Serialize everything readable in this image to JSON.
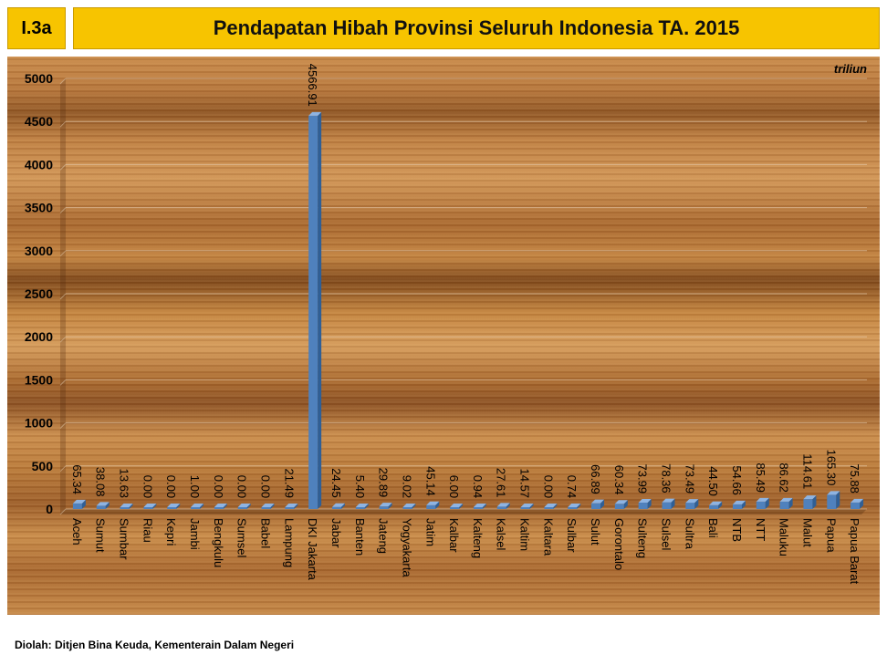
{
  "header": {
    "code": "I.3a",
    "title": "Pendapatan Hibah Provinsi Seluruh Indonesia TA. 2015"
  },
  "footer": {
    "source": "Diolah: Ditjen Bina Keuda, Kementerain Dalam Negeri"
  },
  "colors": {
    "header_bg": "#f7c400",
    "bar": "#4f81bd",
    "bar_dark": "#2f5f96"
  },
  "chart_data": {
    "type": "bar",
    "title": "Pendapatan Hibah Provinsi Seluruh Indonesia TA. 2015",
    "unit": "triliun",
    "xlabel": "",
    "ylabel": "",
    "ylim": [
      0,
      5000
    ],
    "yticks": [
      0,
      500,
      1000,
      1500,
      2000,
      2500,
      3000,
      3500,
      4000,
      4500,
      5000
    ],
    "grid": true,
    "categories": [
      "Aceh",
      "Sumut",
      "Sumbar",
      "Riau",
      "Kepri",
      "Jambi",
      "Bengkulu",
      "Sumsel",
      "Babel",
      "Lampung",
      "DKI Jakarta",
      "Jabar",
      "Banten",
      "Jateng",
      "Yogyakarta",
      "Jatim",
      "Kalbar",
      "Kalteng",
      "Kalsel",
      "Kaltim",
      "Kaltara",
      "Sulbar",
      "Sulut",
      "Gorontalo",
      "Sulteng",
      "Sulsel",
      "Sultra",
      "Bali",
      "NTB",
      "NTT",
      "Maluku",
      "Malut",
      "Papua",
      "Papua Barat"
    ],
    "values": [
      65.34,
      38.08,
      13.63,
      0.0,
      0.0,
      1.0,
      0.0,
      0.0,
      0.0,
      21.49,
      4566.91,
      24.45,
      5.4,
      29.89,
      9.02,
      45.14,
      6.0,
      0.94,
      27.61,
      14.57,
      0.0,
      0.74,
      66.89,
      60.34,
      73.99,
      78.36,
      73.49,
      44.5,
      54.66,
      85.49,
      86.62,
      114.61,
      165.3,
      75.88
    ],
    "labels": [
      "65.34",
      "38.08",
      "13.63",
      "0.00",
      "0.00",
      "1.00",
      "0.00",
      "0.00",
      "0.00",
      "21.49",
      "4566.91",
      "24.45",
      "5.40",
      "29.89",
      "9.02",
      "45.14",
      "6.00",
      "0.94",
      "27.61",
      "14.57",
      "0.00",
      "0.74",
      "66.89",
      "60.34",
      "73.99",
      "78.36",
      "73.49",
      "44.50",
      "54.66",
      "85.49",
      "86.62",
      "114.61",
      "165.30",
      "75.88"
    ]
  }
}
